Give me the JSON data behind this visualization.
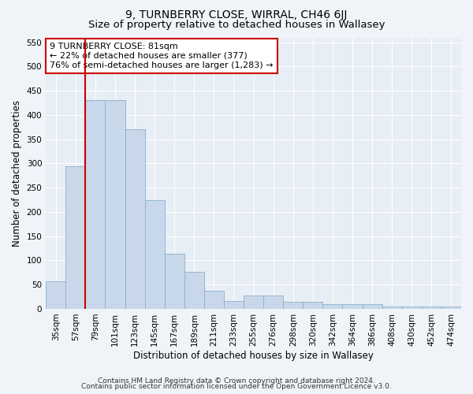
{
  "title": "9, TURNBERRY CLOSE, WIRRAL, CH46 6JJ",
  "subtitle": "Size of property relative to detached houses in Wallasey",
  "xlabel": "Distribution of detached houses by size in Wallasey",
  "ylabel": "Number of detached properties",
  "categories": [
    "35sqm",
    "57sqm",
    "79sqm",
    "101sqm",
    "123sqm",
    "145sqm",
    "167sqm",
    "189sqm",
    "211sqm",
    "233sqm",
    "255sqm",
    "276sqm",
    "298sqm",
    "320sqm",
    "342sqm",
    "364sqm",
    "386sqm",
    "408sqm",
    "430sqm",
    "452sqm",
    "474sqm"
  ],
  "values": [
    57,
    295,
    430,
    430,
    370,
    225,
    113,
    76,
    38,
    17,
    27,
    27,
    15,
    15,
    10,
    10,
    10,
    5,
    5,
    5,
    5
  ],
  "bar_color": "#c8d8ea",
  "bar_edge_color": "#8ab0cc",
  "vline_x_index": 2,
  "vline_color": "#cc0000",
  "annotation_text": "9 TURNBERRY CLOSE: 81sqm\n← 22% of detached houses are smaller (377)\n76% of semi-detached houses are larger (1,283) →",
  "annotation_box_color": "#ffffff",
  "annotation_box_edge": "#cc0000",
  "ylim": [
    0,
    560
  ],
  "yticks": [
    0,
    50,
    100,
    150,
    200,
    250,
    300,
    350,
    400,
    450,
    500,
    550
  ],
  "footer_line1": "Contains HM Land Registry data © Crown copyright and database right 2024.",
  "footer_line2": "Contains public sector information licensed under the Open Government Licence v3.0.",
  "bg_color": "#f0f4f8",
  "plot_bg_color": "#e8eef5",
  "grid_color": "#ffffff",
  "title_fontsize": 10,
  "subtitle_fontsize": 9.5,
  "label_fontsize": 8.5,
  "tick_fontsize": 7.5,
  "footer_fontsize": 6.5,
  "annot_fontsize": 8
}
